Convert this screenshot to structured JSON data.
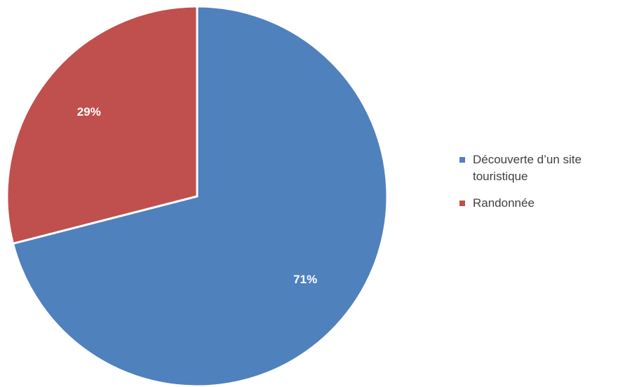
{
  "chart_data": {
    "type": "pie",
    "categories": [
      "Découverte d’un site touristique",
      "Randonnée"
    ],
    "values": [
      71,
      29
    ],
    "data_labels": [
      "71%",
      "29%"
    ],
    "colors": [
      "#4F81BD",
      "#C0504D"
    ],
    "start_angle_deg": 0,
    "direction": "clockwise",
    "legend_position": "right",
    "title": ""
  }
}
